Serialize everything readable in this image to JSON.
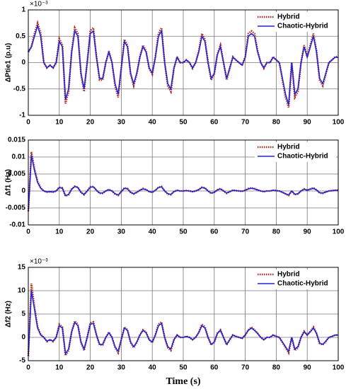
{
  "chart_data": [
    {
      "type": "line",
      "ylabel": "ΔPtie1 (p.u)",
      "y_multiplier": "×10⁻³",
      "legend": "upper right",
      "grid": true,
      "xlim": [
        0,
        100
      ],
      "xticks": [
        0,
        10,
        20,
        30,
        40,
        50,
        60,
        70,
        80,
        90,
        100
      ],
      "ylim": [
        -1,
        1
      ],
      "yticks": [
        -1,
        -0.5,
        0,
        0.5,
        1
      ],
      "x": [
        0,
        1,
        2,
        3,
        4,
        5,
        6,
        7,
        8,
        9,
        10,
        11,
        12,
        13,
        14,
        15,
        16,
        17,
        18,
        19,
        20,
        21,
        22,
        23,
        24,
        25,
        26,
        27,
        28,
        29,
        30,
        31,
        32,
        33,
        34,
        35,
        36,
        37,
        38,
        39,
        40,
        41,
        42,
        43,
        44,
        45,
        46,
        47,
        48,
        49,
        50,
        51,
        52,
        53,
        54,
        55,
        56,
        57,
        58,
        59,
        60,
        61,
        62,
        63,
        64,
        65,
        66,
        67,
        68,
        69,
        70,
        71,
        72,
        73,
        74,
        75,
        76,
        77,
        78,
        79,
        80,
        81,
        82,
        83,
        84,
        85,
        86,
        87,
        88,
        89,
        90,
        91,
        92,
        93,
        94,
        95,
        96,
        97,
        98,
        99,
        100
      ],
      "series": [
        {
          "name": "Hybrid",
          "color": "#b5281c",
          "dash": true,
          "values": [
            0.2,
            0.3,
            0.55,
            0.75,
            0.55,
            0,
            -0.1,
            -0.05,
            -0.1,
            0,
            0.45,
            0.33,
            -0.78,
            -0.55,
            0.22,
            0.66,
            0.55,
            -0.22,
            -0.55,
            0,
            0.6,
            0.66,
            0.11,
            -0.33,
            -0.33,
            0,
            0.22,
            0,
            -0.44,
            -0.66,
            -0.11,
            0.44,
            0.33,
            -0.22,
            -0.44,
            -0.22,
            0.11,
            0.33,
            0.22,
            -0.11,
            -0.22,
            0.11,
            0.55,
            0.66,
            0,
            -0.44,
            -0.55,
            -0.11,
            0.11,
            0,
            0,
            0.05,
            0,
            -0.11,
            0,
            0.22,
            0.55,
            0.44,
            0,
            -0.33,
            -0.22,
            0.16,
            0.33,
            0,
            -0.33,
            -0.11,
            0.11,
            0.05,
            0,
            -0.05,
            0.11,
            0.55,
            0.6,
            0.55,
            0.22,
            0,
            -0.11,
            0,
            0,
            0.11,
            0.05,
            0,
            -0.33,
            -0.66,
            -0.85,
            0,
            -0.66,
            -0.55,
            0,
            0.33,
            0.11,
            0.33,
            0.55,
            0.22,
            -0.33,
            -0.44,
            -0.22,
            0,
            0.05,
            0.11,
            0.11
          ]
        },
        {
          "name": "Chaotic-Hybrid",
          "color": "#2323d4",
          "dash": false,
          "values": [
            0.2,
            0.3,
            0.5,
            0.7,
            0.5,
            0,
            -0.1,
            -0.05,
            -0.1,
            0,
            0.4,
            0.3,
            -0.7,
            -0.5,
            0.2,
            0.6,
            0.5,
            -0.2,
            -0.5,
            0,
            0.55,
            0.6,
            0.1,
            -0.3,
            -0.3,
            0,
            0.2,
            0,
            -0.4,
            -0.6,
            -0.1,
            0.4,
            0.3,
            -0.2,
            -0.4,
            -0.2,
            0.1,
            0.3,
            0.2,
            -0.1,
            -0.2,
            0.1,
            0.5,
            0.6,
            0,
            -0.4,
            -0.5,
            -0.1,
            0.1,
            0,
            0,
            0.05,
            0,
            -0.1,
            0,
            0.2,
            0.5,
            0.4,
            0,
            -0.3,
            -0.2,
            0.15,
            0.3,
            0,
            -0.3,
            -0.1,
            0.1,
            0.05,
            0,
            -0.05,
            0.1,
            0.5,
            0.55,
            0.5,
            0.2,
            0,
            -0.1,
            0,
            0,
            0.1,
            0.05,
            0,
            -0.3,
            -0.6,
            -0.8,
            0,
            -0.6,
            -0.5,
            0,
            0.3,
            0.1,
            0.3,
            0.5,
            0.2,
            -0.3,
            -0.4,
            -0.2,
            0,
            0.05,
            0.1,
            0.1
          ]
        }
      ]
    },
    {
      "type": "line",
      "ylabel": "Δf1 (Hz)",
      "legend": "upper right",
      "grid": true,
      "xlim": [
        0,
        100
      ],
      "xticks": [
        0,
        10,
        20,
        30,
        40,
        50,
        60,
        70,
        80,
        90,
        100
      ],
      "ylim": [
        -0.01,
        0.015
      ],
      "yticks": [
        -0.01,
        -0.005,
        0,
        0.005,
        0.01,
        0.015
      ],
      "x": [
        0,
        1,
        2,
        3,
        4,
        5,
        6,
        7,
        8,
        9,
        10,
        11,
        12,
        13,
        14,
        15,
        16,
        17,
        18,
        19,
        20,
        21,
        22,
        23,
        24,
        25,
        26,
        27,
        28,
        29,
        30,
        31,
        32,
        33,
        34,
        35,
        36,
        37,
        38,
        39,
        40,
        41,
        42,
        43,
        44,
        45,
        46,
        47,
        48,
        49,
        50,
        51,
        52,
        53,
        54,
        55,
        56,
        57,
        58,
        59,
        60,
        61,
        62,
        63,
        64,
        65,
        66,
        67,
        68,
        69,
        70,
        71,
        72,
        73,
        74,
        75,
        76,
        77,
        78,
        79,
        80,
        81,
        82,
        83,
        84,
        85,
        86,
        87,
        88,
        89,
        90,
        91,
        92,
        93,
        94,
        95,
        96,
        97,
        98,
        99,
        100
      ],
      "series": [
        {
          "name": "Hybrid",
          "color": "#b5281c",
          "dash": true,
          "values": [
            -0.006,
            0.0115,
            0.0065,
            0.0028,
            0.0009,
            0,
            -0.0003,
            -0.0002,
            -0.0003,
            0,
            0.0011,
            0.0009,
            -0.0015,
            -0.0011,
            0.0006,
            0.0014,
            0.0011,
            -0.0004,
            -0.0011,
            0,
            0.0012,
            0.0013,
            0.0002,
            -0.0007,
            -0.0007,
            0,
            0.0004,
            0,
            -0.0009,
            -0.0013,
            -0.0002,
            0.0009,
            0.0007,
            -0.0004,
            -0.0009,
            -0.0004,
            0.0002,
            0.0007,
            0.0004,
            -0.0002,
            -0.0004,
            0.0002,
            0.0011,
            0.0013,
            0,
            -0.0009,
            -0.0011,
            -0.0002,
            0.0002,
            0,
            0,
            0.0001,
            0,
            -0.0002,
            0,
            0.0004,
            0.0011,
            0.0009,
            0,
            -0.0007,
            -0.0004,
            0.0003,
            0.0007,
            0,
            -0.0007,
            -0.0002,
            0.0002,
            0.0001,
            0,
            -0.0001,
            0.0002,
            0.0007,
            0.0009,
            0.0007,
            0.0003,
            0,
            -0.0002,
            0,
            0,
            0.0002,
            0.0001,
            0,
            -0.0004,
            -0.0009,
            -0.0013,
            0,
            -0.0011,
            -0.0009,
            0,
            0.0006,
            0.0002,
            0.0006,
            0.0009,
            0.0003,
            -0.0006,
            -0.0007,
            -0.0003,
            0,
            0.0001,
            0.0002,
            0.0002
          ]
        },
        {
          "name": "Chaotic-Hybrid",
          "color": "#2323d4",
          "dash": false,
          "values": [
            -0.006,
            0.0105,
            0.006,
            0.0025,
            0.0008,
            0,
            -0.0003,
            -0.0002,
            -0.0003,
            0,
            0.001,
            0.0008,
            -0.0014,
            -0.001,
            0.0005,
            0.0013,
            0.001,
            -0.0004,
            -0.001,
            0,
            0.0011,
            0.0012,
            0.0002,
            -0.0006,
            -0.0006,
            0,
            0.0004,
            0,
            -0.0008,
            -0.0012,
            -0.0002,
            0.0008,
            0.0006,
            -0.0004,
            -0.0008,
            -0.0004,
            0.0002,
            0.0006,
            0.0004,
            -0.0002,
            -0.0004,
            0.0002,
            0.001,
            0.0012,
            0,
            -0.0008,
            -0.001,
            -0.0002,
            0.0002,
            0,
            0,
            0.0001,
            0,
            -0.0002,
            0,
            0.0004,
            0.001,
            0.0008,
            0,
            -0.0006,
            -0.0004,
            0.0003,
            0.0006,
            0,
            -0.0006,
            -0.0002,
            0.0002,
            0.0001,
            0,
            -0.0001,
            0.0002,
            0.0006,
            0.0008,
            0.0006,
            0.0003,
            0,
            -0.0002,
            0,
            0,
            0.0002,
            0.0001,
            0,
            -0.0004,
            -0.0008,
            -0.0012,
            0,
            -0.001,
            -0.0008,
            0,
            0.0005,
            0.0002,
            0.0005,
            0.0008,
            0.0003,
            -0.0005,
            -0.0006,
            -0.0003,
            0,
            0.0001,
            0.0002,
            0.0002
          ]
        }
      ]
    },
    {
      "type": "line",
      "ylabel": "Δf2 (Hz)",
      "y_multiplier": "×10⁻³",
      "xlabel": "Time (s)",
      "legend": "upper right",
      "grid": true,
      "xlim": [
        0,
        100
      ],
      "xticks": [
        0,
        10,
        20,
        30,
        40,
        50,
        60,
        70,
        80,
        90,
        100
      ],
      "ylim": [
        -5,
        15
      ],
      "yticks": [
        -5,
        0,
        5,
        10,
        15
      ],
      "x": [
        0,
        1,
        2,
        3,
        4,
        5,
        6,
        7,
        8,
        9,
        10,
        11,
        12,
        13,
        14,
        15,
        16,
        17,
        18,
        19,
        20,
        21,
        22,
        23,
        24,
        25,
        26,
        27,
        28,
        29,
        30,
        31,
        32,
        33,
        34,
        35,
        36,
        37,
        38,
        39,
        40,
        41,
        42,
        43,
        44,
        45,
        46,
        47,
        48,
        49,
        50,
        51,
        52,
        53,
        54,
        55,
        56,
        57,
        58,
        59,
        60,
        61,
        62,
        63,
        64,
        65,
        66,
        67,
        68,
        69,
        70,
        71,
        72,
        73,
        74,
        75,
        76,
        77,
        78,
        79,
        80,
        81,
        82,
        83,
        84,
        85,
        86,
        87,
        88,
        89,
        90,
        91,
        92,
        93,
        94,
        95,
        96,
        97,
        98,
        99,
        100
      ],
      "series": [
        {
          "name": "Hybrid",
          "color": "#b5281c",
          "dash": true,
          "values": [
            -4,
            11.5,
            6.5,
            2.2,
            0.6,
            0,
            -0.9,
            -0.5,
            -0.9,
            0,
            2.8,
            2.2,
            -3.9,
            -2.8,
            1.3,
            3.5,
            2.8,
            -1.1,
            -2.8,
            0,
            3.1,
            3.3,
            0.5,
            -1.6,
            -1.6,
            0,
            1.1,
            0,
            -2.2,
            -3.3,
            -0.5,
            2.2,
            1.6,
            -1.1,
            -2.2,
            -1.1,
            0.5,
            1.6,
            1.1,
            -0.5,
            -1.1,
            0.5,
            2.8,
            3.3,
            0,
            -2.2,
            -2.8,
            -0.5,
            0.5,
            0,
            0,
            0.2,
            0,
            -0.5,
            0,
            1.1,
            2.8,
            2.2,
            0,
            -1.6,
            -1.1,
            0.9,
            1.6,
            0,
            -1.6,
            -0.5,
            0.5,
            0.2,
            0,
            -0.2,
            0.5,
            1.6,
            2.2,
            1.6,
            0.9,
            0,
            -0.5,
            0,
            0,
            0.5,
            0.2,
            0,
            -1.1,
            -2.2,
            -3.3,
            0,
            -2.8,
            -2.2,
            0,
            1.3,
            0.5,
            1.3,
            2.2,
            0.9,
            -1.3,
            -1.6,
            -0.9,
            0,
            0.2,
            0.5,
            0.5
          ]
        },
        {
          "name": "Chaotic-Hybrid",
          "color": "#2323d4",
          "dash": false,
          "values": [
            -4,
            10,
            6,
            2,
            0.5,
            0,
            -0.8,
            -0.5,
            -0.8,
            0,
            2.5,
            2,
            -3.5,
            -2.5,
            1.2,
            3.2,
            2.5,
            -1,
            -2.5,
            0,
            2.8,
            3,
            0.5,
            -1.5,
            -1.5,
            0,
            1,
            0,
            -2,
            -3,
            -0.5,
            2,
            1.5,
            -1,
            -2,
            -1,
            0.5,
            1.5,
            1,
            -0.5,
            -1,
            0.5,
            2.5,
            3,
            0,
            -2,
            -2.5,
            -0.5,
            0.5,
            0,
            0,
            0.2,
            0,
            -0.5,
            0,
            1,
            2.5,
            2,
            0,
            -1.5,
            -1,
            0.8,
            1.5,
            0,
            -1.5,
            -0.5,
            0.5,
            0.2,
            0,
            -0.2,
            0.5,
            1.5,
            2,
            1.5,
            0.8,
            0,
            -0.5,
            0,
            0,
            0.5,
            0.2,
            0,
            -1,
            -2,
            -3,
            0,
            -2.5,
            -2,
            0,
            1.2,
            0.5,
            1.2,
            2,
            0.8,
            -1.2,
            -1.5,
            -0.8,
            0,
            0.2,
            0.5,
            0.5
          ]
        }
      ]
    }
  ]
}
